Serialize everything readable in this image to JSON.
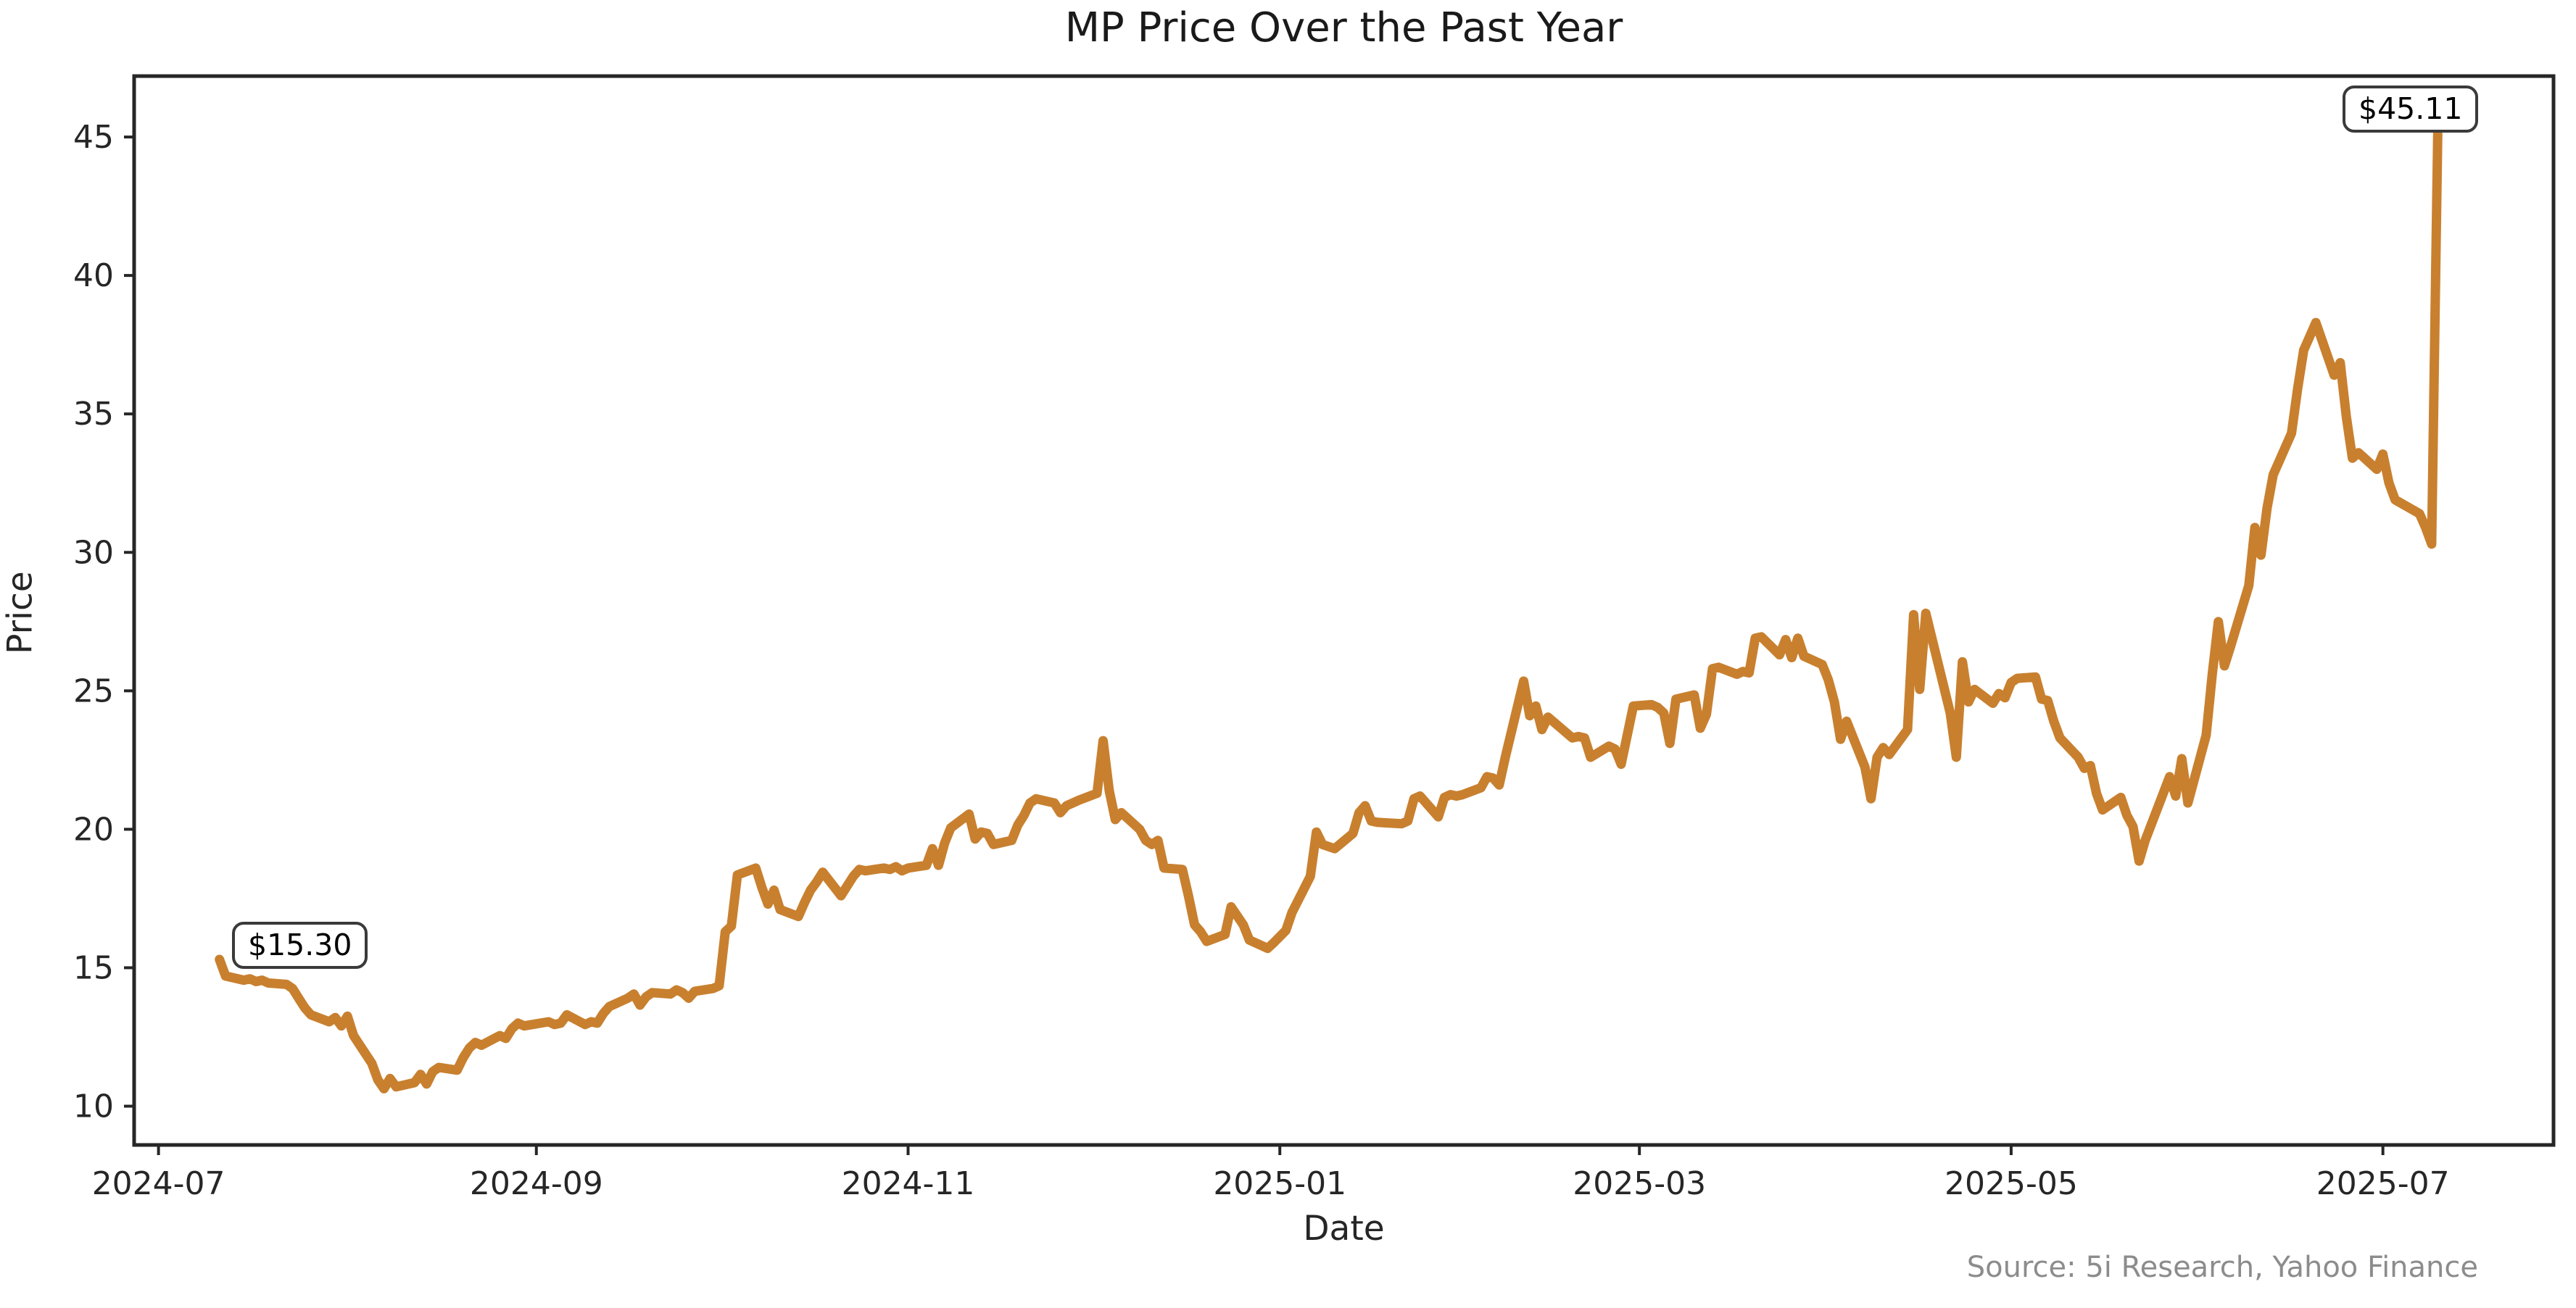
{
  "figure": {
    "title": "MP Price Over the Past Year",
    "source_note": "Source: 5i Research, Yahoo Finance"
  },
  "annotations": {
    "start": {
      "label": "$15.30",
      "value": 15.3,
      "date": "2024-07-11"
    },
    "end": {
      "label": "$45.11",
      "value": 45.11,
      "date": "2025-07-10"
    }
  },
  "colors": {
    "line": "#C8802F",
    "spine": "#262626",
    "tick_text": "#262626",
    "source_text": "#8c8c8c",
    "annotation_border": "#3a3a3a",
    "background": "#ffffff"
  },
  "chart_data": {
    "type": "line",
    "title": "MP Price Over the Past Year",
    "xlabel": "Date",
    "ylabel": "Price",
    "legend": "none",
    "grid": false,
    "xlim": [
      "2024-06-27",
      "2025-07-29"
    ],
    "ylim": [
      8.6,
      47.2
    ],
    "x_ticks": [
      {
        "date": "2024-07-01",
        "label": "2024-07"
      },
      {
        "date": "2024-09-01",
        "label": "2024-09"
      },
      {
        "date": "2024-11-01",
        "label": "2024-11"
      },
      {
        "date": "2025-01-01",
        "label": "2025-01"
      },
      {
        "date": "2025-03-01",
        "label": "2025-03"
      },
      {
        "date": "2025-05-01",
        "label": "2025-05"
      },
      {
        "date": "2025-07-01",
        "label": "2025-07"
      }
    ],
    "y_ticks": [
      10,
      15,
      20,
      25,
      30,
      35,
      40,
      45
    ],
    "series": [
      {
        "name": "MP",
        "color": "#C8802F",
        "dates": [
          "2024-07-11",
          "2024-07-12",
          "2024-07-15",
          "2024-07-16",
          "2024-07-17",
          "2024-07-18",
          "2024-07-19",
          "2024-07-22",
          "2024-07-23",
          "2024-07-24",
          "2024-07-25",
          "2024-07-26",
          "2024-07-29",
          "2024-07-30",
          "2024-07-31",
          "2024-08-01",
          "2024-08-02",
          "2024-08-05",
          "2024-08-06",
          "2024-08-07",
          "2024-08-08",
          "2024-08-09",
          "2024-08-12",
          "2024-08-13",
          "2024-08-14",
          "2024-08-15",
          "2024-08-16",
          "2024-08-19",
          "2024-08-20",
          "2024-08-21",
          "2024-08-22",
          "2024-08-23",
          "2024-08-26",
          "2024-08-27",
          "2024-08-28",
          "2024-08-29",
          "2024-08-30",
          "2024-09-03",
          "2024-09-04",
          "2024-09-05",
          "2024-09-06",
          "2024-09-09",
          "2024-09-10",
          "2024-09-11",
          "2024-09-12",
          "2024-09-13",
          "2024-09-16",
          "2024-09-17",
          "2024-09-18",
          "2024-09-19",
          "2024-09-20",
          "2024-09-23",
          "2024-09-24",
          "2024-09-25",
          "2024-09-26",
          "2024-09-27",
          "2024-09-30",
          "2024-10-01",
          "2024-10-02",
          "2024-10-03",
          "2024-10-04",
          "2024-10-07",
          "2024-10-08",
          "2024-10-09",
          "2024-10-10",
          "2024-10-11",
          "2024-10-14",
          "2024-10-15",
          "2024-10-16",
          "2024-10-17",
          "2024-10-18",
          "2024-10-21",
          "2024-10-22",
          "2024-10-23",
          "2024-10-24",
          "2024-10-25",
          "2024-10-28",
          "2024-10-29",
          "2024-10-30",
          "2024-10-31",
          "2024-11-01",
          "2024-11-04",
          "2024-11-05",
          "2024-11-06",
          "2024-11-07",
          "2024-11-08",
          "2024-11-11",
          "2024-11-12",
          "2024-11-13",
          "2024-11-14",
          "2024-11-15",
          "2024-11-18",
          "2024-11-19",
          "2024-11-20",
          "2024-11-21",
          "2024-11-22",
          "2024-11-25",
          "2024-11-26",
          "2024-11-27",
          "2024-11-29",
          "2024-12-02",
          "2024-12-03",
          "2024-12-04",
          "2024-12-05",
          "2024-12-06",
          "2024-12-09",
          "2024-12-10",
          "2024-12-11",
          "2024-12-12",
          "2024-12-13",
          "2024-12-16",
          "2024-12-17",
          "2024-12-18",
          "2024-12-19",
          "2024-12-20",
          "2024-12-23",
          "2024-12-24",
          "2024-12-26",
          "2024-12-27",
          "2024-12-30",
          "2024-12-31",
          "2025-01-02",
          "2025-01-03",
          "2025-01-06",
          "2025-01-07",
          "2025-01-08",
          "2025-01-10",
          "2025-01-13",
          "2025-01-14",
          "2025-01-15",
          "2025-01-16",
          "2025-01-17",
          "2025-01-21",
          "2025-01-22",
          "2025-01-23",
          "2025-01-24",
          "2025-01-27",
          "2025-01-28",
          "2025-01-29",
          "2025-01-30",
          "2025-01-31",
          "2025-02-03",
          "2025-02-04",
          "2025-02-05",
          "2025-02-06",
          "2025-02-07",
          "2025-02-10",
          "2025-02-11",
          "2025-02-12",
          "2025-02-13",
          "2025-02-14",
          "2025-02-18",
          "2025-02-19",
          "2025-02-20",
          "2025-02-21",
          "2025-02-24",
          "2025-02-25",
          "2025-02-26",
          "2025-02-27",
          "2025-02-28",
          "2025-03-03",
          "2025-03-04",
          "2025-03-05",
          "2025-03-06",
          "2025-03-07",
          "2025-03-10",
          "2025-03-11",
          "2025-03-12",
          "2025-03-13",
          "2025-03-14",
          "2025-03-17",
          "2025-03-18",
          "2025-03-19",
          "2025-03-20",
          "2025-03-21",
          "2025-03-24",
          "2025-03-25",
          "2025-03-26",
          "2025-03-27",
          "2025-03-28",
          "2025-03-31",
          "2025-04-01",
          "2025-04-02",
          "2025-04-03",
          "2025-04-04",
          "2025-04-07",
          "2025-04-08",
          "2025-04-09",
          "2025-04-10",
          "2025-04-11",
          "2025-04-14",
          "2025-04-15",
          "2025-04-16",
          "2025-04-17",
          "2025-04-21",
          "2025-04-22",
          "2025-04-23",
          "2025-04-24",
          "2025-04-25",
          "2025-04-28",
          "2025-04-29",
          "2025-04-30",
          "2025-05-01",
          "2025-05-02",
          "2025-05-05",
          "2025-05-06",
          "2025-05-07",
          "2025-05-08",
          "2025-05-09",
          "2025-05-12",
          "2025-05-13",
          "2025-05-14",
          "2025-05-15",
          "2025-05-16",
          "2025-05-19",
          "2025-05-20",
          "2025-05-21",
          "2025-05-22",
          "2025-05-23",
          "2025-05-27",
          "2025-05-28",
          "2025-05-29",
          "2025-05-30",
          "2025-06-02",
          "2025-06-03",
          "2025-06-04",
          "2025-06-05",
          "2025-06-06",
          "2025-06-09",
          "2025-06-10",
          "2025-06-11",
          "2025-06-12",
          "2025-06-13",
          "2025-06-16",
          "2025-06-17",
          "2025-06-18",
          "2025-06-20",
          "2025-06-23",
          "2025-06-24",
          "2025-06-25",
          "2025-06-26",
          "2025-06-27",
          "2025-06-30",
          "2025-07-01",
          "2025-07-02",
          "2025-07-03",
          "2025-07-07",
          "2025-07-08",
          "2025-07-09",
          "2025-07-10"
        ],
        "prices": [
          15.3,
          14.7,
          14.55,
          14.6,
          14.5,
          14.55,
          14.45,
          14.4,
          14.25,
          13.9,
          13.55,
          13.3,
          13.05,
          13.2,
          12.9,
          13.25,
          12.55,
          11.55,
          10.95,
          10.63,
          11.0,
          10.7,
          10.85,
          11.15,
          10.8,
          11.25,
          11.4,
          11.3,
          11.75,
          12.1,
          12.3,
          12.2,
          12.55,
          12.45,
          12.8,
          13.0,
          12.9,
          13.05,
          12.95,
          13.0,
          13.3,
          12.95,
          13.05,
          13.0,
          13.35,
          13.6,
          13.9,
          14.05,
          13.65,
          13.95,
          14.1,
          14.05,
          14.2,
          14.1,
          13.9,
          14.15,
          14.25,
          14.35,
          16.3,
          16.5,
          18.35,
          18.6,
          17.9,
          17.3,
          17.8,
          17.1,
          16.85,
          17.35,
          17.8,
          18.1,
          18.45,
          17.6,
          17.95,
          18.3,
          18.55,
          18.5,
          18.6,
          18.55,
          18.65,
          18.5,
          18.6,
          18.7,
          19.3,
          18.7,
          19.5,
          20.05,
          20.55,
          19.65,
          19.9,
          19.85,
          19.45,
          19.6,
          20.15,
          20.5,
          20.95,
          21.1,
          20.95,
          20.6,
          20.85,
          21.05,
          21.3,
          23.2,
          21.4,
          20.35,
          20.6,
          20.0,
          19.6,
          19.45,
          19.6,
          18.6,
          18.55,
          17.6,
          16.55,
          16.3,
          15.95,
          16.2,
          17.2,
          16.55,
          16.0,
          15.7,
          15.9,
          16.35,
          17.0,
          18.3,
          19.9,
          19.45,
          19.3,
          19.85,
          20.6,
          20.85,
          20.3,
          20.25,
          20.2,
          20.3,
          21.1,
          21.2,
          20.45,
          21.15,
          21.25,
          21.2,
          21.25,
          21.5,
          21.9,
          21.85,
          21.6,
          22.6,
          25.35,
          24.1,
          24.45,
          23.6,
          24.05,
          23.3,
          23.35,
          23.3,
          22.6,
          23.0,
          22.9,
          22.35,
          23.4,
          24.45,
          24.5,
          24.4,
          24.2,
          23.1,
          24.7,
          24.85,
          23.65,
          24.15,
          25.8,
          25.85,
          25.6,
          25.7,
          25.65,
          26.9,
          26.95,
          26.3,
          26.85,
          26.2,
          26.9,
          26.25,
          25.95,
          25.4,
          24.6,
          23.25,
          23.9,
          22.25,
          21.1,
          22.6,
          22.95,
          22.7,
          23.6,
          27.75,
          25.05,
          27.8,
          24.2,
          22.6,
          26.05,
          24.6,
          25.05,
          24.55,
          24.9,
          24.75,
          25.3,
          25.45,
          25.5,
          24.7,
          24.65,
          23.9,
          23.3,
          22.6,
          22.2,
          22.3,
          21.3,
          20.7,
          21.15,
          20.5,
          20.1,
          18.85,
          19.6,
          21.9,
          21.2,
          22.55,
          20.95,
          23.4,
          25.6,
          27.5,
          25.9,
          26.6,
          28.8,
          30.9,
          29.9,
          31.6,
          32.8,
          34.3,
          35.9,
          37.3,
          38.3,
          36.4,
          36.85,
          34.9,
          33.4,
          33.6,
          33.0,
          33.55,
          32.5,
          31.9,
          31.4,
          30.9,
          30.3,
          45.11
        ]
      }
    ]
  }
}
